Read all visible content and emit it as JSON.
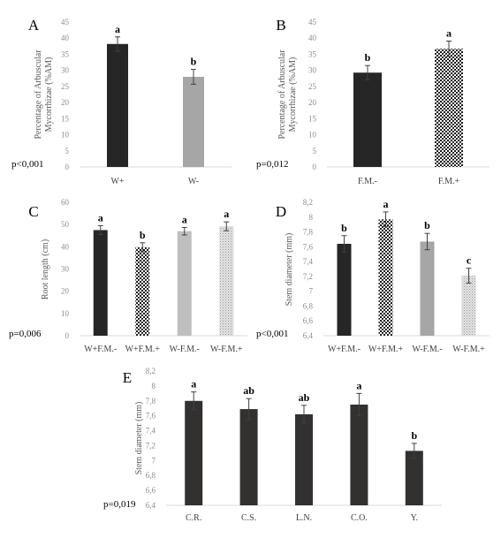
{
  "chart_data": [
    {
      "type": "bar",
      "panel": "A",
      "ylabel": [
        "Percentage of Arbuscular",
        "Mycorrhizae (%AM)"
      ],
      "ylim": [
        0,
        45
      ],
      "yticks": [
        "0",
        "5",
        "10",
        "15",
        "20",
        "25",
        "30",
        "35",
        "40",
        "45"
      ],
      "categories": [
        "W+",
        "W-"
      ],
      "values": [
        38.2,
        28.0
      ],
      "errors": [
        2.2,
        2.3
      ],
      "letters": [
        "a",
        "b"
      ],
      "fills": [
        "solid-black",
        "solid-gray"
      ],
      "pvalue": "p<0,001"
    },
    {
      "type": "bar",
      "panel": "B",
      "ylabel": [
        "Percentage of Arbuscular",
        "Mycorrhizae (%AM)"
      ],
      "ylim": [
        0,
        45
      ],
      "yticks": [
        "0",
        "5",
        "10",
        "15",
        "20",
        "25",
        "30",
        "35",
        "40",
        "45"
      ],
      "categories": [
        "F.M.-",
        "F.M.+"
      ],
      "values": [
        29.3,
        36.7
      ],
      "errors": [
        2.2,
        2.4
      ],
      "letters": [
        "b",
        "a"
      ],
      "fills": [
        "solid-black",
        "checker-pattern"
      ],
      "pvalue": "p=0,012"
    },
    {
      "type": "bar",
      "panel": "C",
      "ylabel": [
        "Root length (cm)"
      ],
      "ylim": [
        0,
        60
      ],
      "yticks": [
        "0",
        "10",
        "20",
        "30",
        "40",
        "50",
        "60"
      ],
      "categories": [
        "W+F.M.-",
        "W+F.M.+",
        "W-F.M.-",
        "W-F.M.+"
      ],
      "values": [
        47.5,
        39.8,
        47.0,
        49.2
      ],
      "errors": [
        2.0,
        2.0,
        1.7,
        2.0
      ],
      "letters": [
        "a",
        "b",
        "a",
        "a"
      ],
      "fills": [
        "solid-black",
        "checker-pattern",
        "solid-lightgray",
        "dotted-pattern"
      ],
      "pvalue": "p=0,006"
    },
    {
      "type": "bar",
      "panel": "D",
      "ylabel": [
        "Stem diameter (mm)"
      ],
      "ylim": [
        6.4,
        8.2
      ],
      "yticks": [
        "6,4",
        "6,6",
        "6,8",
        "7",
        "7,2",
        "7,4",
        "7,6",
        "7,8",
        "8",
        "8,2"
      ],
      "categories": [
        "W+F.M.-",
        "W+F.M.+",
        "W-F.M.-",
        "W-F.M.+"
      ],
      "values": [
        7.64,
        7.97,
        7.67,
        7.21
      ],
      "errors": [
        0.11,
        0.1,
        0.11,
        0.1
      ],
      "letters": [
        "b",
        "a",
        "b",
        "c"
      ],
      "fills": [
        "solid-black",
        "checker-pattern",
        "solid-gray",
        "dotted-pattern"
      ],
      "pvalue": "p<0,001"
    },
    {
      "type": "bar",
      "panel": "E",
      "ylabel": [
        "Stem diameter (mm)"
      ],
      "ylim": [
        6.4,
        8.2
      ],
      "yticks": [
        "6,4",
        "6,6",
        "6,8",
        "7",
        "7,2",
        "7,4",
        "7,6",
        "7,8",
        "8",
        "8,2"
      ],
      "categories": [
        "C.R.",
        "C.S.",
        "L.N.",
        "C.O.",
        "Y."
      ],
      "values": [
        7.8,
        7.69,
        7.62,
        7.75,
        7.13
      ],
      "errors": [
        0.12,
        0.14,
        0.12,
        0.15,
        0.1
      ],
      "letters": [
        "a",
        "ab",
        "ab",
        "a",
        "b"
      ],
      "fills": [
        "solid-darkgray",
        "solid-darkgray",
        "solid-darkgray",
        "solid-darkgray",
        "solid-darkgray"
      ],
      "pvalue": "p=0,019"
    }
  ],
  "colors": {
    "solid-black": "#262626",
    "solid-gray": "#a6a6a6",
    "solid-lightgray": "#bfbfbf",
    "solid-darkgray": "#333030",
    "axis": "#d9d9d9",
    "errorbar": "#404040"
  }
}
